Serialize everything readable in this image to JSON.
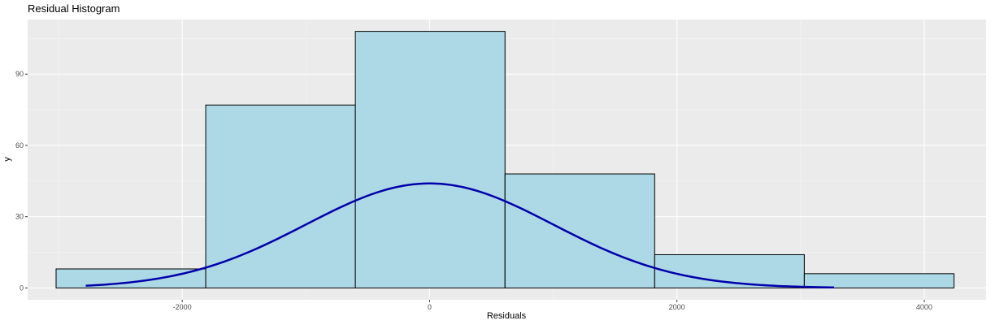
{
  "chart_data": {
    "type": "bar",
    "subtype": "histogram-with-density-curve",
    "title": "Residual Histogram",
    "xlabel": "Residuals",
    "ylabel": "y",
    "xlim": [
      -3250,
      4500
    ],
    "ylim": [
      -5,
      113
    ],
    "x_ticks": [
      -2000,
      0,
      2000,
      4000
    ],
    "x_tick_labels": [
      "-2000",
      "0",
      "2000",
      "4000"
    ],
    "y_ticks": [
      0,
      30,
      60,
      90
    ],
    "y_tick_labels": [
      "0",
      "30",
      "60",
      "90"
    ],
    "bins": [
      {
        "x0": -3020,
        "x1": -1810,
        "count": 8
      },
      {
        "x0": -1810,
        "x1": -600,
        "count": 77
      },
      {
        "x0": -600,
        "x1": 610,
        "count": 108
      },
      {
        "x0": 610,
        "x1": 1820,
        "count": 48
      },
      {
        "x0": 1820,
        "x1": 3030,
        "count": 14
      },
      {
        "x0": 3030,
        "x1": 4240,
        "count": 6
      }
    ],
    "density_curve": {
      "mean": 0,
      "sd": 1000,
      "peak": 44,
      "x_range": [
        -2780,
        3270
      ]
    },
    "grid": true,
    "legend": "none",
    "colors": {
      "panel_background": "#ebebeb",
      "grid_major": "#ffffff",
      "bar_fill": "#add8e6",
      "bar_stroke": "#000000",
      "curve": "#0000aa"
    }
  }
}
